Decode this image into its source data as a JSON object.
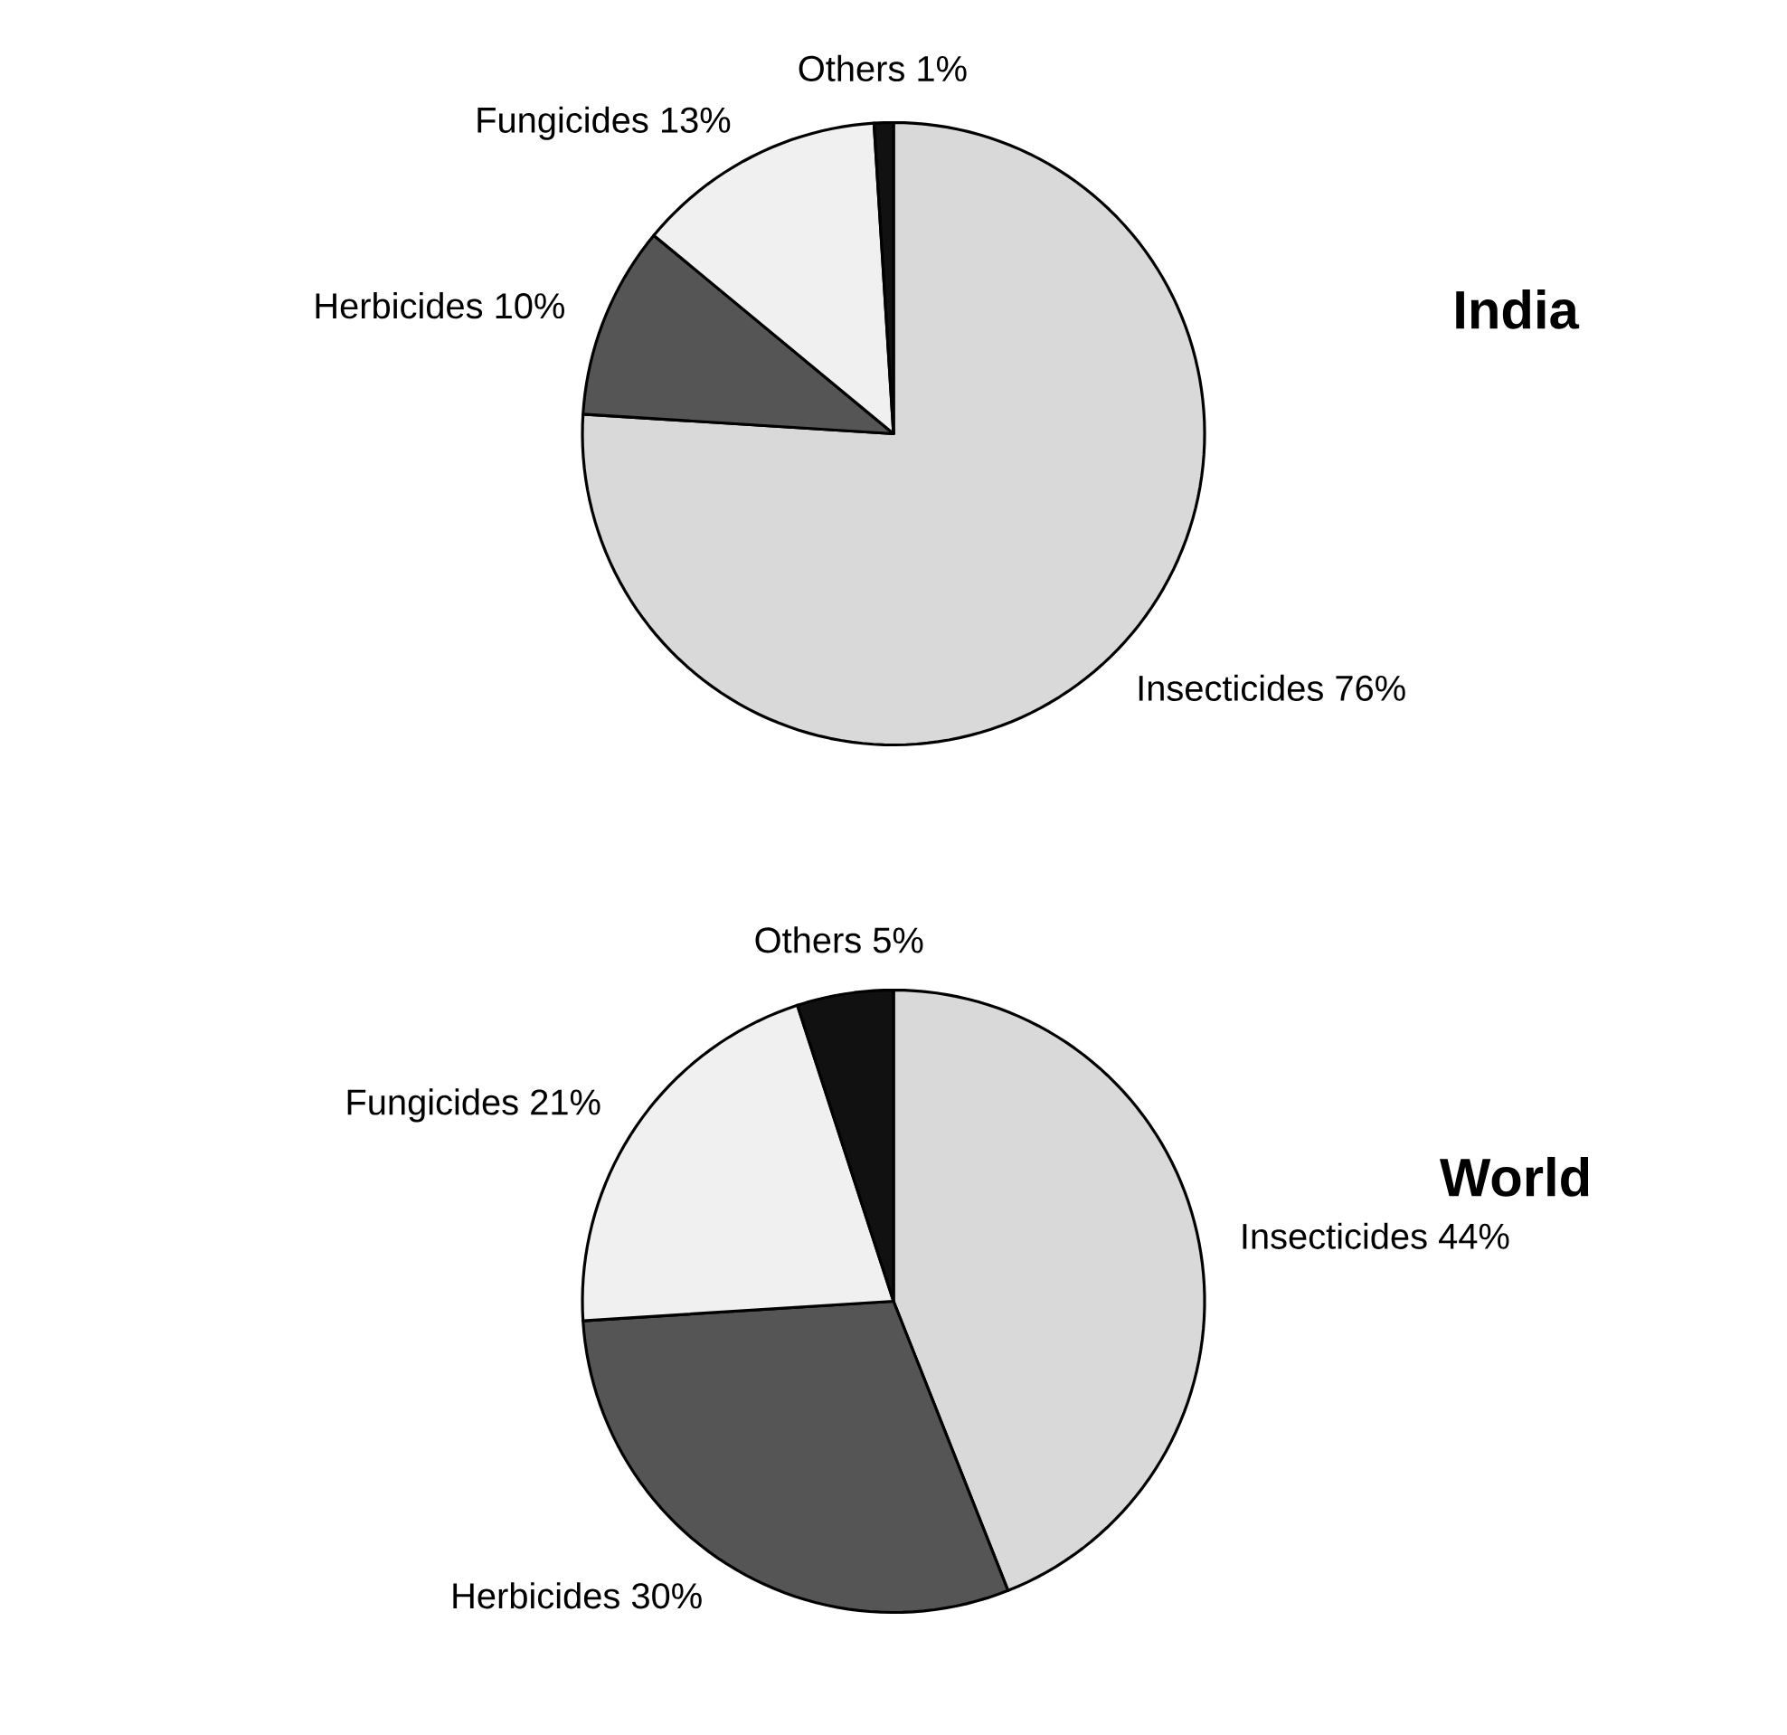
{
  "chart_data": [
    {
      "type": "pie",
      "title": "India",
      "categories": [
        "Insecticides",
        "Herbicides",
        "Fungicides",
        "Others"
      ],
      "values": [
        76,
        10,
        13,
        1
      ],
      "value_labels": [
        "76%",
        "10%",
        "13%",
        "1%"
      ],
      "colors": [
        "#d9d9d9",
        "#555555",
        "#f0f0f0",
        "#111111"
      ]
    },
    {
      "type": "pie",
      "title": "World",
      "categories": [
        "Insecticides",
        "Herbicides",
        "Fungicides",
        "Others"
      ],
      "values": [
        44,
        30,
        21,
        5
      ],
      "value_labels": [
        "44%",
        "30%",
        "21%",
        "5%"
      ],
      "colors": [
        "#d9d9d9",
        "#555555",
        "#f0f0f0",
        "#111111"
      ]
    }
  ]
}
